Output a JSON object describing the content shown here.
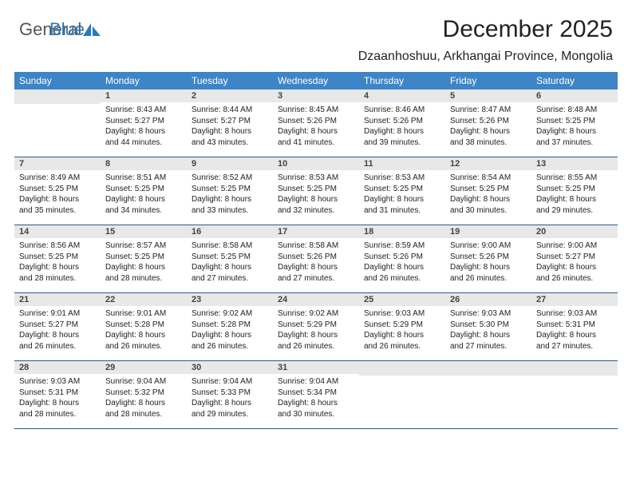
{
  "brand": {
    "text1": "General",
    "text2": "Blue",
    "icon_color": "#2a7ab9"
  },
  "title": "December 2025",
  "location": "Dzaanhoshuu, Arkhangai Province, Mongolia",
  "colors": {
    "header_bg": "#3d85c6",
    "header_text": "#ffffff",
    "daynum_bg": "#e8e8e8",
    "row_border": "#2a5a8a"
  },
  "day_headers": [
    "Sunday",
    "Monday",
    "Tuesday",
    "Wednesday",
    "Thursday",
    "Friday",
    "Saturday"
  ],
  "weeks": [
    [
      {
        "empty": true
      },
      {
        "num": "1",
        "sunrise": "Sunrise: 8:43 AM",
        "sunset": "Sunset: 5:27 PM",
        "dl1": "Daylight: 8 hours",
        "dl2": "and 44 minutes."
      },
      {
        "num": "2",
        "sunrise": "Sunrise: 8:44 AM",
        "sunset": "Sunset: 5:27 PM",
        "dl1": "Daylight: 8 hours",
        "dl2": "and 43 minutes."
      },
      {
        "num": "3",
        "sunrise": "Sunrise: 8:45 AM",
        "sunset": "Sunset: 5:26 PM",
        "dl1": "Daylight: 8 hours",
        "dl2": "and 41 minutes."
      },
      {
        "num": "4",
        "sunrise": "Sunrise: 8:46 AM",
        "sunset": "Sunset: 5:26 PM",
        "dl1": "Daylight: 8 hours",
        "dl2": "and 39 minutes."
      },
      {
        "num": "5",
        "sunrise": "Sunrise: 8:47 AM",
        "sunset": "Sunset: 5:26 PM",
        "dl1": "Daylight: 8 hours",
        "dl2": "and 38 minutes."
      },
      {
        "num": "6",
        "sunrise": "Sunrise: 8:48 AM",
        "sunset": "Sunset: 5:25 PM",
        "dl1": "Daylight: 8 hours",
        "dl2": "and 37 minutes."
      }
    ],
    [
      {
        "num": "7",
        "sunrise": "Sunrise: 8:49 AM",
        "sunset": "Sunset: 5:25 PM",
        "dl1": "Daylight: 8 hours",
        "dl2": "and 35 minutes."
      },
      {
        "num": "8",
        "sunrise": "Sunrise: 8:51 AM",
        "sunset": "Sunset: 5:25 PM",
        "dl1": "Daylight: 8 hours",
        "dl2": "and 34 minutes."
      },
      {
        "num": "9",
        "sunrise": "Sunrise: 8:52 AM",
        "sunset": "Sunset: 5:25 PM",
        "dl1": "Daylight: 8 hours",
        "dl2": "and 33 minutes."
      },
      {
        "num": "10",
        "sunrise": "Sunrise: 8:53 AM",
        "sunset": "Sunset: 5:25 PM",
        "dl1": "Daylight: 8 hours",
        "dl2": "and 32 minutes."
      },
      {
        "num": "11",
        "sunrise": "Sunrise: 8:53 AM",
        "sunset": "Sunset: 5:25 PM",
        "dl1": "Daylight: 8 hours",
        "dl2": "and 31 minutes."
      },
      {
        "num": "12",
        "sunrise": "Sunrise: 8:54 AM",
        "sunset": "Sunset: 5:25 PM",
        "dl1": "Daylight: 8 hours",
        "dl2": "and 30 minutes."
      },
      {
        "num": "13",
        "sunrise": "Sunrise: 8:55 AM",
        "sunset": "Sunset: 5:25 PM",
        "dl1": "Daylight: 8 hours",
        "dl2": "and 29 minutes."
      }
    ],
    [
      {
        "num": "14",
        "sunrise": "Sunrise: 8:56 AM",
        "sunset": "Sunset: 5:25 PM",
        "dl1": "Daylight: 8 hours",
        "dl2": "and 28 minutes."
      },
      {
        "num": "15",
        "sunrise": "Sunrise: 8:57 AM",
        "sunset": "Sunset: 5:25 PM",
        "dl1": "Daylight: 8 hours",
        "dl2": "and 28 minutes."
      },
      {
        "num": "16",
        "sunrise": "Sunrise: 8:58 AM",
        "sunset": "Sunset: 5:25 PM",
        "dl1": "Daylight: 8 hours",
        "dl2": "and 27 minutes."
      },
      {
        "num": "17",
        "sunrise": "Sunrise: 8:58 AM",
        "sunset": "Sunset: 5:26 PM",
        "dl1": "Daylight: 8 hours",
        "dl2": "and 27 minutes."
      },
      {
        "num": "18",
        "sunrise": "Sunrise: 8:59 AM",
        "sunset": "Sunset: 5:26 PM",
        "dl1": "Daylight: 8 hours",
        "dl2": "and 26 minutes."
      },
      {
        "num": "19",
        "sunrise": "Sunrise: 9:00 AM",
        "sunset": "Sunset: 5:26 PM",
        "dl1": "Daylight: 8 hours",
        "dl2": "and 26 minutes."
      },
      {
        "num": "20",
        "sunrise": "Sunrise: 9:00 AM",
        "sunset": "Sunset: 5:27 PM",
        "dl1": "Daylight: 8 hours",
        "dl2": "and 26 minutes."
      }
    ],
    [
      {
        "num": "21",
        "sunrise": "Sunrise: 9:01 AM",
        "sunset": "Sunset: 5:27 PM",
        "dl1": "Daylight: 8 hours",
        "dl2": "and 26 minutes."
      },
      {
        "num": "22",
        "sunrise": "Sunrise: 9:01 AM",
        "sunset": "Sunset: 5:28 PM",
        "dl1": "Daylight: 8 hours",
        "dl2": "and 26 minutes."
      },
      {
        "num": "23",
        "sunrise": "Sunrise: 9:02 AM",
        "sunset": "Sunset: 5:28 PM",
        "dl1": "Daylight: 8 hours",
        "dl2": "and 26 minutes."
      },
      {
        "num": "24",
        "sunrise": "Sunrise: 9:02 AM",
        "sunset": "Sunset: 5:29 PM",
        "dl1": "Daylight: 8 hours",
        "dl2": "and 26 minutes."
      },
      {
        "num": "25",
        "sunrise": "Sunrise: 9:03 AM",
        "sunset": "Sunset: 5:29 PM",
        "dl1": "Daylight: 8 hours",
        "dl2": "and 26 minutes."
      },
      {
        "num": "26",
        "sunrise": "Sunrise: 9:03 AM",
        "sunset": "Sunset: 5:30 PM",
        "dl1": "Daylight: 8 hours",
        "dl2": "and 27 minutes."
      },
      {
        "num": "27",
        "sunrise": "Sunrise: 9:03 AM",
        "sunset": "Sunset: 5:31 PM",
        "dl1": "Daylight: 8 hours",
        "dl2": "and 27 minutes."
      }
    ],
    [
      {
        "num": "28",
        "sunrise": "Sunrise: 9:03 AM",
        "sunset": "Sunset: 5:31 PM",
        "dl1": "Daylight: 8 hours",
        "dl2": "and 28 minutes."
      },
      {
        "num": "29",
        "sunrise": "Sunrise: 9:04 AM",
        "sunset": "Sunset: 5:32 PM",
        "dl1": "Daylight: 8 hours",
        "dl2": "and 28 minutes."
      },
      {
        "num": "30",
        "sunrise": "Sunrise: 9:04 AM",
        "sunset": "Sunset: 5:33 PM",
        "dl1": "Daylight: 8 hours",
        "dl2": "and 29 minutes."
      },
      {
        "num": "31",
        "sunrise": "Sunrise: 9:04 AM",
        "sunset": "Sunset: 5:34 PM",
        "dl1": "Daylight: 8 hours",
        "dl2": "and 30 minutes."
      },
      {
        "empty": true
      },
      {
        "empty": true
      },
      {
        "empty": true
      }
    ]
  ]
}
